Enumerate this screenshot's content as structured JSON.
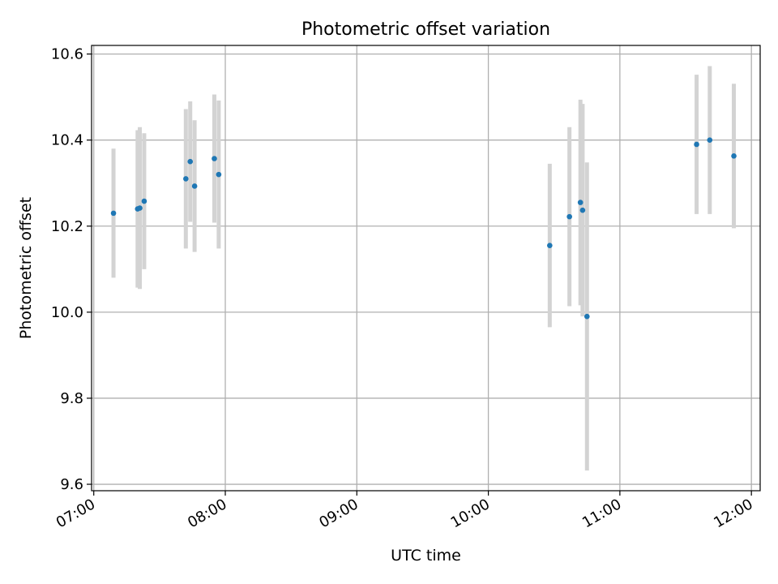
{
  "chart_data": {
    "type": "scatter",
    "title": "Photometric offset variation",
    "xlabel": "UTC time",
    "ylabel": "Photometric offset",
    "xlim": [
      "06:59",
      "12:04"
    ],
    "ylim": [
      9.585,
      10.62
    ],
    "x_ticks": [
      "07:00",
      "08:00",
      "09:00",
      "10:00",
      "11:00",
      "12:00"
    ],
    "y_ticks": [
      "9.6",
      "9.8",
      "10.0",
      "10.2",
      "10.4",
      "10.6"
    ],
    "grid": true,
    "colors": {
      "point": "#1f77b4",
      "errorbar": "#d3d3d3",
      "grid": "#b0b0b0"
    },
    "points": [
      {
        "time": "07:09",
        "value": 10.23,
        "low": 10.08,
        "high": 10.38
      },
      {
        "time": "07:20",
        "value": 10.24,
        "low": 10.057,
        "high": 10.423
      },
      {
        "time": "07:21",
        "value": 10.242,
        "low": 10.054,
        "high": 10.43
      },
      {
        "time": "07:23",
        "value": 10.258,
        "low": 10.1,
        "high": 10.416
      },
      {
        "time": "07:42",
        "value": 10.31,
        "low": 10.148,
        "high": 10.472
      },
      {
        "time": "07:44",
        "value": 10.35,
        "low": 10.21,
        "high": 10.49
      },
      {
        "time": "07:46",
        "value": 10.293,
        "low": 10.14,
        "high": 10.446
      },
      {
        "time": "07:55",
        "value": 10.357,
        "low": 10.208,
        "high": 10.506
      },
      {
        "time": "07:57",
        "value": 10.32,
        "low": 10.148,
        "high": 10.492
      },
      {
        "time": "10:28",
        "value": 10.155,
        "low": 9.965,
        "high": 10.345
      },
      {
        "time": "10:37",
        "value": 10.222,
        "low": 10.014,
        "high": 10.43
      },
      {
        "time": "10:42",
        "value": 10.255,
        "low": 10.016,
        "high": 10.494
      },
      {
        "time": "10:43",
        "value": 10.237,
        "low": 9.99,
        "high": 10.484
      },
      {
        "time": "10:45",
        "value": 9.99,
        "low": 9.632,
        "high": 10.348
      },
      {
        "time": "11:35",
        "value": 10.39,
        "low": 10.228,
        "high": 10.552
      },
      {
        "time": "11:41",
        "value": 10.4,
        "low": 10.228,
        "high": 10.572
      },
      {
        "time": "11:52",
        "value": 10.363,
        "low": 10.195,
        "high": 10.531
      }
    ]
  }
}
